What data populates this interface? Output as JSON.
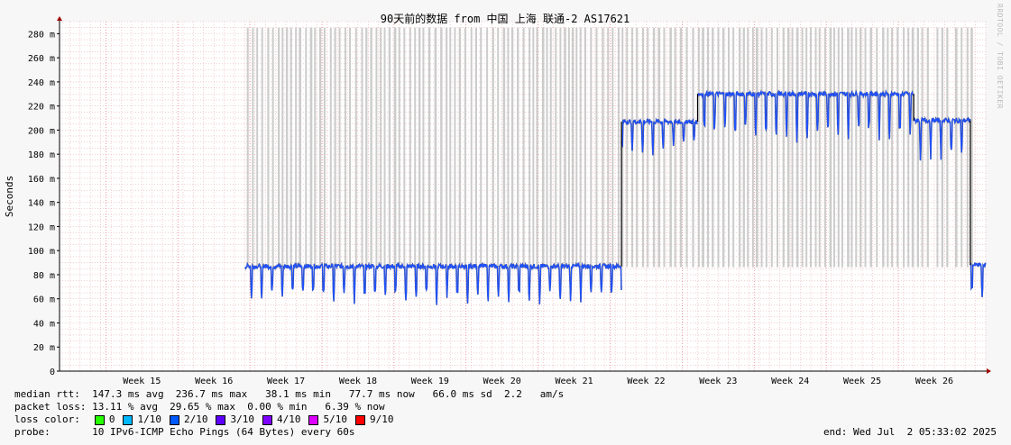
{
  "chart_data": {
    "type": "line",
    "title": "90天前的数据 from 中国 上海 联通-2 AS17621",
    "ylabel": "Seconds",
    "xlabel": "",
    "ylim": [
      0,
      0.29
    ],
    "y_ticks": [
      {
        "value": 0,
        "label": "0"
      },
      {
        "value": 0.02,
        "label": "20 m"
      },
      {
        "value": 0.04,
        "label": "40 m"
      },
      {
        "value": 0.06,
        "label": "60 m"
      },
      {
        "value": 0.08,
        "label": "80 m"
      },
      {
        "value": 0.1,
        "label": "100 m"
      },
      {
        "value": 0.12,
        "label": "120 m"
      },
      {
        "value": 0.14,
        "label": "140 m"
      },
      {
        "value": 0.16,
        "label": "160 m"
      },
      {
        "value": 0.18,
        "label": "180 m"
      },
      {
        "value": 0.2,
        "label": "200 m"
      },
      {
        "value": 0.22,
        "label": "220 m"
      },
      {
        "value": 0.24,
        "label": "240 m"
      },
      {
        "value": 0.26,
        "label": "260 m"
      },
      {
        "value": 0.28,
        "label": "280 m"
      }
    ],
    "xlim": [
      0,
      90
    ],
    "x_ticks": [
      {
        "value": 8,
        "label": "Week 15"
      },
      {
        "value": 15,
        "label": "Week 16"
      },
      {
        "value": 22,
        "label": "Week 17"
      },
      {
        "value": 29,
        "label": "Week 18"
      },
      {
        "value": 36,
        "label": "Week 19"
      },
      {
        "value": 43,
        "label": "Week 20"
      },
      {
        "value": 50,
        "label": "Week 21"
      },
      {
        "value": 57,
        "label": "Week 22"
      },
      {
        "value": 64,
        "label": "Week 23"
      },
      {
        "value": 71,
        "label": "Week 24"
      },
      {
        "value": 78,
        "label": "Week 25"
      },
      {
        "value": 85,
        "label": "Week 26"
      }
    ],
    "segments": [
      {
        "from": 18,
        "to": 54.6,
        "baseline": 0.087,
        "dip": 0.06
      },
      {
        "from": 54.6,
        "to": 59,
        "baseline": 0.207,
        "dip": 0.18
      },
      {
        "from": 59,
        "to": 62,
        "baseline": 0.207,
        "dip": 0.19
      },
      {
        "from": 62,
        "to": 83,
        "baseline": 0.23,
        "dip": 0.195
      },
      {
        "from": 83,
        "to": 88.5,
        "baseline": 0.208,
        "dip": 0.18
      },
      {
        "from": 88.5,
        "to": 90,
        "baseline": 0.088,
        "dip": 0.065
      }
    ],
    "grid": true,
    "legend_placement": "bottom"
  },
  "stats": {
    "median_rtt": "median rtt:  147.3 ms avg  236.7 ms max   38.1 ms min   77.7 ms now   66.0 ms sd  2.2   am/s",
    "packet_loss": "packet loss: 13.11 % avg  29.65 % max  0.00 % min   6.39 % now",
    "loss_color_label": "loss color:",
    "probe": "probe:       10 IPv6-ICMP Echo Pings (64 Bytes) every 60s",
    "end": "end: Wed Jul  2 05:33:02 2025"
  },
  "loss_colors": [
    {
      "label": "0",
      "color": "#26ff00"
    },
    {
      "label": "1/10",
      "color": "#00b8ff"
    },
    {
      "label": "2/10",
      "color": "#0059ff"
    },
    {
      "label": "3/10",
      "color": "#5e00ff"
    },
    {
      "label": "4/10",
      "color": "#7e00ff"
    },
    {
      "label": "5/10",
      "color": "#dd00ff"
    },
    {
      "label": "9/10",
      "color": "#ff0000"
    }
  ],
  "watermark": "RRDTOOL / TOBI OETIKER",
  "colors": {
    "background": "#f7f7f7",
    "plot_bg": "#ffffff",
    "grid_minor": "#e8b0b0",
    "grid_major": "#e07070",
    "loss_band": "#cccccc",
    "line_main": "#1e50ff",
    "line_smoke": "#000000"
  }
}
